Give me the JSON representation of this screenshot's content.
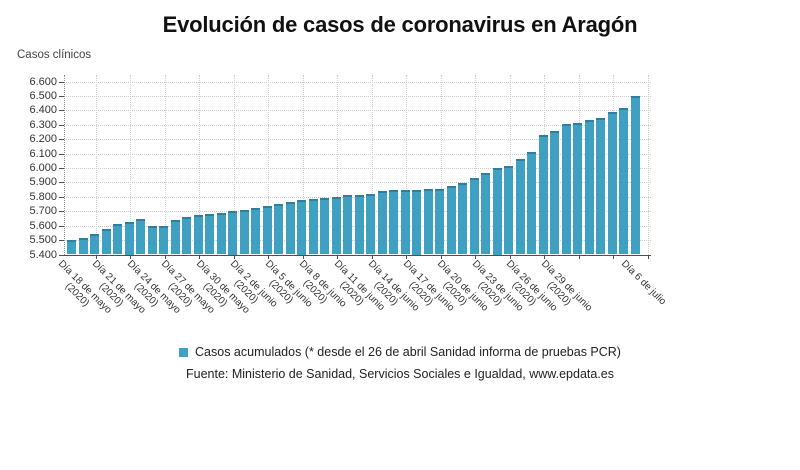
{
  "title": "Evolución de casos de coronavirus en Aragón",
  "y_axis_title": "Casos clínicos",
  "legend": {
    "marker_color": "#3fa0c2",
    "label": "Casos acumulados (* desde el 26 de abril Sanidad informa de pruebas PCR)"
  },
  "source": "Fuente: Ministerio de Sanidad, Servicios Sociales e Igualdad, www.epdata.es",
  "colors": {
    "bar_fill": "#3fa0c2",
    "bar_cap": "#2e7f9d",
    "grid": "#cccccc",
    "axis": "#4d4d4d",
    "text": "#333333"
  },
  "chart_data": {
    "type": "bar",
    "title": "Evolución de casos de coronavirus en Aragón",
    "xlabel": "",
    "ylabel": "Casos clínicos",
    "ylim": [
      5400,
      6600
    ],
    "ytick_step": 100,
    "ytick_labels": [
      "5.400",
      "5.500",
      "5.600",
      "5.700",
      "5.800",
      "5.900",
      "6.000",
      "6.100",
      "6.200",
      "6.300",
      "6.400",
      "6.500",
      "6.600"
    ],
    "grid": true,
    "legend_position": "bottom",
    "series_name": "Casos acumulados (* desde el 26 de abril Sanidad informa de pruebas PCR)",
    "categories": [
      "18 de mayo (2020)",
      "19 de mayo (2020)",
      "20 de mayo (2020)",
      "21 de mayo (2020)",
      "22 de mayo (2020)",
      "23 de mayo (2020)",
      "24 de mayo (2020)",
      "25 de mayo (2020)",
      "26 de mayo (2020)",
      "27 de mayo (2020)",
      "28 de mayo (2020)",
      "29 de mayo (2020)",
      "30 de mayo (2020)",
      "31 de mayo (2020)",
      "1 de junio (2020)",
      "2 de junio (2020)",
      "3 de junio (2020)",
      "4 de junio (2020)",
      "5 de junio (2020)",
      "6 de junio (2020)",
      "7 de junio (2020)",
      "8 de junio (2020)",
      "9 de junio (2020)",
      "10 de junio (2020)",
      "11 de junio (2020)",
      "12 de junio (2020)",
      "13 de junio (2020)",
      "14 de junio (2020)",
      "15 de junio (2020)",
      "16 de junio (2020)",
      "17 de junio (2020)",
      "18 de junio (2020)",
      "19 de junio (2020)",
      "20 de junio (2020)",
      "21 de junio (2020)",
      "22 de junio (2020)",
      "23 de junio (2020)",
      "24 de junio (2020)",
      "25 de junio (2020)",
      "26 de junio (2020)",
      "27 de junio (2020)",
      "28 de junio (2020)",
      "29 de junio (2020)",
      "30 de junio (2020)",
      "1 de julio (2020)",
      "2 de julio (2020)",
      "3 de julio (2020)",
      "4 de julio (2020)",
      "5 de julio (2020)",
      "6 de julio (2020)"
    ],
    "values": [
      5500,
      5515,
      5545,
      5580,
      5610,
      5625,
      5645,
      5600,
      5600,
      5640,
      5660,
      5675,
      5680,
      5690,
      5700,
      5710,
      5725,
      5735,
      5750,
      5765,
      5775,
      5785,
      5790,
      5800,
      5810,
      5815,
      5820,
      5840,
      5845,
      5845,
      5850,
      5855,
      5855,
      5875,
      5895,
      5930,
      5965,
      6000,
      6015,
      6060,
      6110,
      6230,
      6255,
      6305,
      6315,
      6335,
      6350,
      6385,
      6415,
      6500
    ],
    "labeled_ticks": [
      {
        "index": 0,
        "line1": "Día 18 de mayo",
        "line2": "(2020)"
      },
      {
        "index": 3,
        "line1": "Día 21 de mayo",
        "line2": "(2020)"
      },
      {
        "index": 6,
        "line1": "Día 24 de mayo",
        "line2": "(2020)"
      },
      {
        "index": 9,
        "line1": "Día 27 de mayo",
        "line2": "(2020)"
      },
      {
        "index": 12,
        "line1": "Día 30 de mayo",
        "line2": "(2020)"
      },
      {
        "index": 15,
        "line1": "Día 2 de junio",
        "line2": "(2020)"
      },
      {
        "index": 18,
        "line1": "Día 5 de junio",
        "line2": "(2020)"
      },
      {
        "index": 21,
        "line1": "Día 8 de junio",
        "line2": "(2020)"
      },
      {
        "index": 24,
        "line1": "Día 11 de junio",
        "line2": "(2020)"
      },
      {
        "index": 27,
        "line1": "Día 14 de junio",
        "line2": "(2020)"
      },
      {
        "index": 30,
        "line1": "Día 17 de junio",
        "line2": "(2020)"
      },
      {
        "index": 33,
        "line1": "Día 20 de junio",
        "line2": "(2020)"
      },
      {
        "index": 36,
        "line1": "Día 23 de junio",
        "line2": "(2020)"
      },
      {
        "index": 39,
        "line1": "Día 26 de junio",
        "line2": "(2020)"
      },
      {
        "index": 42,
        "line1": "Día 29 de junio",
        "line2": "(2020)"
      },
      {
        "index": 49,
        "line1": "Día 6 de julio",
        "line2": ""
      }
    ]
  }
}
